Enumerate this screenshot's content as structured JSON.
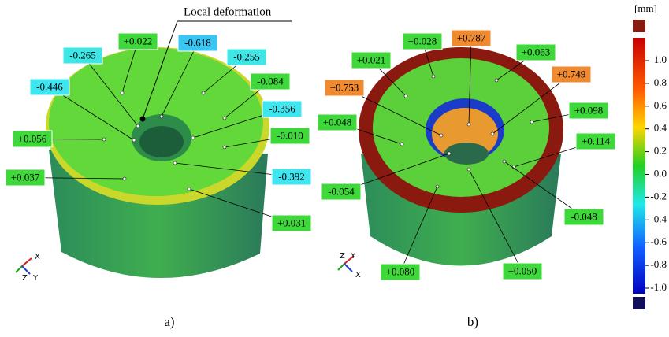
{
  "panels": [
    {
      "caption": "a)",
      "annotation": "Local deformation",
      "triad": [
        "X",
        "Z",
        "Y"
      ],
      "labels": [
        {
          "text": "+0.022",
          "color": "#3ed83a"
        },
        {
          "text": "-0.265",
          "color": "#3fe6e6"
        },
        {
          "text": "-0.618",
          "color": "#3ac6f2"
        },
        {
          "text": "-0.255",
          "color": "#3fe6e6"
        },
        {
          "text": "-0.084",
          "color": "#3ed83a"
        },
        {
          "text": "-0.446",
          "color": "#3fe6f0"
        },
        {
          "text": "-0.356",
          "color": "#3fe6f0"
        },
        {
          "text": "+0.056",
          "color": "#3ed83a"
        },
        {
          "text": "-0.010",
          "color": "#3ed83a"
        },
        {
          "text": "+0.037",
          "color": "#3ed83a"
        },
        {
          "text": "-0.392",
          "color": "#3fe6f0"
        },
        {
          "text": "+0.031",
          "color": "#3ed83a"
        }
      ]
    },
    {
      "caption": "b)",
      "triad": [
        "Z",
        "Y",
        "X"
      ],
      "labels": [
        {
          "text": "+0.028",
          "color": "#3ed83a"
        },
        {
          "text": "+0.787",
          "color": "#f08a30"
        },
        {
          "text": "+0.021",
          "color": "#3ed83a"
        },
        {
          "text": "+0.063",
          "color": "#3ed83a"
        },
        {
          "text": "+0.753",
          "color": "#f08a30"
        },
        {
          "text": "+0.749",
          "color": "#f08a30"
        },
        {
          "text": "+0.048",
          "color": "#3ed83a"
        },
        {
          "text": "+0.098",
          "color": "#3ed83a"
        },
        {
          "text": "+0.114",
          "color": "#3ed83a"
        },
        {
          "text": "-0.054",
          "color": "#3ed83a"
        },
        {
          "text": "-0.048",
          "color": "#3ed83a"
        },
        {
          "text": "+0.080",
          "color": "#3ed83a"
        },
        {
          "text": "+0.050",
          "color": "#3ed83a"
        }
      ]
    }
  ],
  "colorbar": {
    "unit": "[mm]",
    "ticks": [
      "1.0",
      "0.8",
      "0.6",
      "0.4",
      "0.2",
      "0.0",
      "-0.2",
      "-0.4",
      "-0.6",
      "-0.8",
      "-1.0"
    ]
  }
}
